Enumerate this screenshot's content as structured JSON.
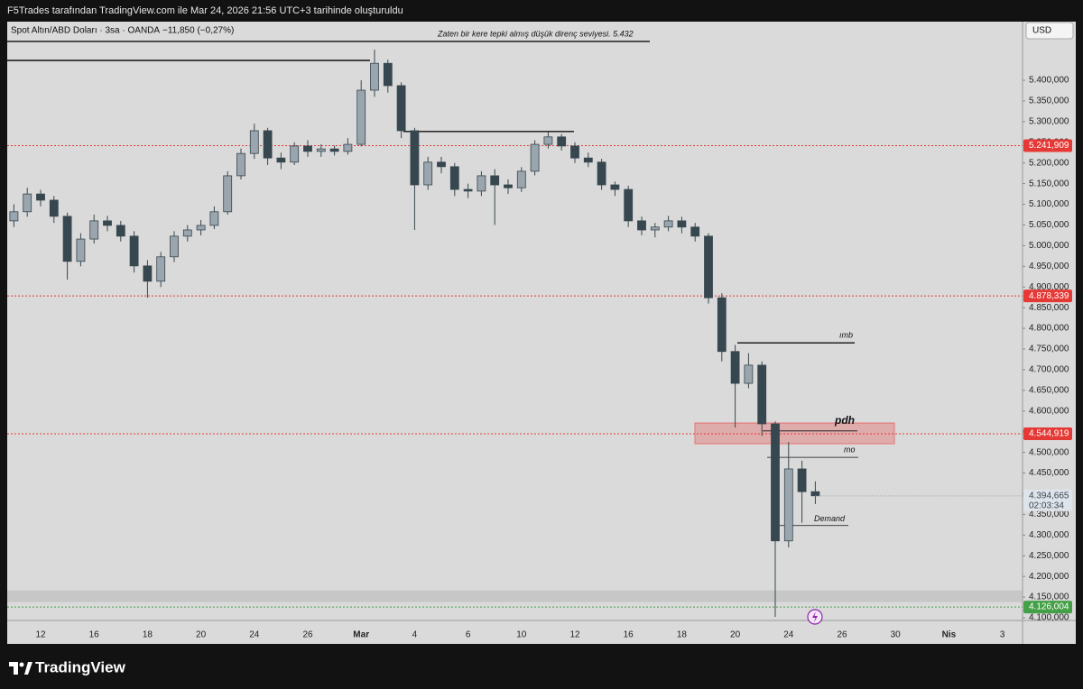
{
  "header": "F5Trades tarafından TradingView.com ile Mar 24, 2026 21:56 UTC+3 tarihinde oluşturuldu",
  "brand": "TradingView",
  "chart_data": {
    "type": "candlestick",
    "title": "Spot Altın/ABD Doları · 3sa · OANDA",
    "change": "−11,850 (−0,27%)",
    "currency": "USD",
    "open": [
      5060,
      5082,
      5125,
      5110,
      5071,
      4962,
      5016,
      5060,
      5049,
      5023,
      4951,
      4914,
      4973,
      5023,
      5038,
      5049,
      5082,
      5169,
      5223,
      5278,
      5212,
      5202,
      5241,
      5228,
      5234,
      5228,
      5245,
      5376,
      5441,
      5387,
      5278,
      5147,
      5202,
      5191,
      5136,
      5132,
      5169,
      5147,
      5140,
      5180,
      5245,
      5263,
      5241,
      5212,
      5202,
      5147,
      5136,
      5060,
      5038,
      5045,
      5060,
      5045,
      5023,
      4874,
      4744,
      4667,
      4711,
      4569,
      4286,
      4460,
      4405
    ],
    "high": [
      5100,
      5140,
      5135,
      5120,
      5080,
      5030,
      5075,
      5072,
      5060,
      5035,
      4965,
      4985,
      5035,
      5050,
      5062,
      5095,
      5180,
      5235,
      5295,
      5285,
      5225,
      5250,
      5255,
      5245,
      5242,
      5260,
      5400,
      5474,
      5450,
      5395,
      5285,
      5215,
      5215,
      5200,
      5150,
      5180,
      5185,
      5160,
      5190,
      5255,
      5275,
      5270,
      5250,
      5225,
      5210,
      5155,
      5145,
      5070,
      5055,
      5072,
      5070,
      5055,
      5030,
      4885,
      4760,
      4740,
      4720,
      4575,
      4525,
      4480,
      4430
    ],
    "low": [
      5045,
      5070,
      5095,
      5055,
      4918,
      4950,
      5005,
      5035,
      5010,
      4935,
      4874,
      4900,
      4960,
      5010,
      5025,
      5040,
      5075,
      5160,
      5210,
      5195,
      5185,
      5195,
      5215,
      5215,
      5218,
      5220,
      5240,
      5360,
      5370,
      5260,
      5038,
      5135,
      5175,
      5120,
      5115,
      5120,
      5050,
      5125,
      5130,
      5170,
      5235,
      5230,
      5200,
      5190,
      5135,
      5120,
      5045,
      5025,
      5020,
      5035,
      5030,
      5010,
      4860,
      4720,
      4560,
      4655,
      4540,
      4102,
      4270,
      4330,
      4375
    ],
    "close": [
      5082,
      5125,
      5110,
      5071,
      4962,
      5016,
      5060,
      5049,
      5023,
      4951,
      4914,
      4973,
      5023,
      5038,
      5049,
      5082,
      5169,
      5223,
      5278,
      5212,
      5202,
      5241,
      5228,
      5234,
      5228,
      5245,
      5376,
      5441,
      5387,
      5278,
      5147,
      5202,
      5191,
      5136,
      5132,
      5169,
      5147,
      5140,
      5180,
      5245,
      5263,
      5241,
      5212,
      5202,
      5147,
      5136,
      5060,
      5038,
      5045,
      5060,
      5045,
      5023,
      4874,
      4744,
      4667,
      4711,
      4569,
      4286,
      4460,
      4405,
      4395
    ],
    "up_color": "#9aa5ae",
    "down_color": "#37474f",
    "xtick_labels": [
      "12",
      "16",
      "18",
      "20",
      "24",
      "26",
      "Mar",
      "4",
      "6",
      "10",
      "12",
      "16",
      "18",
      "20",
      "24",
      "26",
      "30",
      "Nis",
      "3"
    ],
    "ylim": [
      4093.5,
      5541.8
    ],
    "yticks": [
      {
        "value": 5400,
        "label": "5.400,000"
      },
      {
        "value": 5350,
        "label": "5.350,000"
      },
      {
        "value": 5300,
        "label": "5.300,000"
      },
      {
        "value": 5250,
        "label": "5.250,000"
      },
      {
        "value": 5200,
        "label": "5.200,000"
      },
      {
        "value": 5150,
        "label": "5.150,000"
      },
      {
        "value": 5100,
        "label": "5.100,000"
      },
      {
        "value": 5050,
        "label": "5.050,000"
      },
      {
        "value": 5000,
        "label": "5.000,000"
      },
      {
        "value": 4950,
        "label": "4.950,000"
      },
      {
        "value": 4900,
        "label": "4.900,000"
      },
      {
        "value": 4850,
        "label": "4.850,000"
      },
      {
        "value": 4800,
        "label": "4.800,000"
      },
      {
        "value": 4750,
        "label": "4.750,000"
      },
      {
        "value": 4700,
        "label": "4.700,000"
      },
      {
        "value": 4650,
        "label": "4.650,000"
      },
      {
        "value": 4600,
        "label": "4.600,000"
      },
      {
        "value": 4550,
        "label": "4.550,000"
      },
      {
        "value": 4500,
        "label": "4.500,000"
      },
      {
        "value": 4450,
        "label": "4.450,000"
      },
      {
        "value": 4400,
        "label": "4.400,000"
      },
      {
        "value": 4350,
        "label": "4.350,000"
      },
      {
        "value": 4300,
        "label": "4.300,000"
      },
      {
        "value": 4250,
        "label": "4.250,000"
      },
      {
        "value": 4200,
        "label": "4.200,000"
      },
      {
        "value": 4150,
        "label": "4.150,000"
      },
      {
        "value": 4100,
        "label": "4.100,000"
      }
    ],
    "grid": false,
    "levels": [
      {
        "value": 5241.909,
        "label": "5.241,909",
        "color": "#e53935"
      },
      {
        "value": 4878.339,
        "label": "4.878,339",
        "color": "#e53935"
      },
      {
        "value": 4544.919,
        "label": "4.544,919",
        "color": "#e53935"
      },
      {
        "value": 4126.004,
        "label": "4.126,004",
        "color": "#43a047"
      }
    ],
    "last_price": {
      "value": 4394.665,
      "label": "4.394,665",
      "countdown": "02:03:34"
    },
    "zones": [
      {
        "low": 4521,
        "high": 4571,
        "color": "#e57373"
      },
      {
        "low": 4138,
        "high": 4166,
        "color": "#b0b0b0"
      }
    ],
    "drawings": [
      {
        "value": 5494,
        "text": "Zaten bir kere tepki almış düşük direnç seviyesi.   5.432"
      },
      {
        "value": 5448
      },
      {
        "value": 5276
      },
      {
        "value": 4765,
        "text": "ımb"
      },
      {
        "value": 4552,
        "text": "pdh"
      },
      {
        "value": 4488,
        "text": "mo"
      },
      {
        "value": 4323,
        "text": "Demand"
      }
    ]
  }
}
